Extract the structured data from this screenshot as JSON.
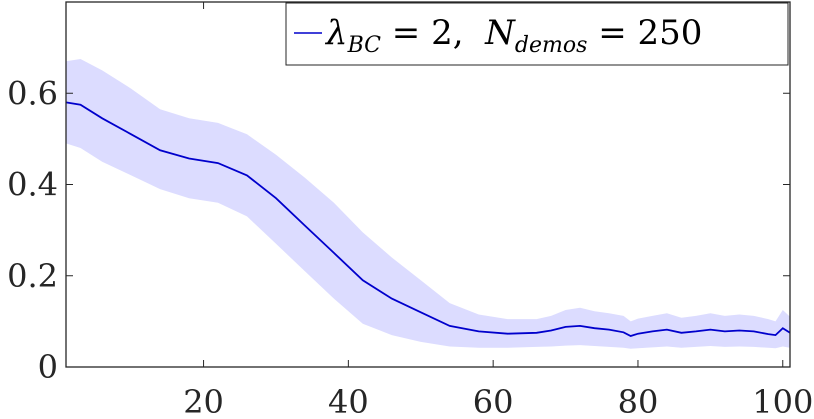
{
  "chart_data": {
    "type": "line",
    "title": "",
    "xlabel": "",
    "ylabel": "",
    "xlim": [
      1,
      101
    ],
    "ylim": [
      0,
      0.8
    ],
    "xticks": [
      20,
      40,
      60,
      80,
      100
    ],
    "xtick_labels": [
      "20",
      "40",
      "60",
      "80",
      "100"
    ],
    "yticks": [
      0,
      0.2,
      0.4,
      0.6
    ],
    "ytick_labels": [
      "0",
      "0.2",
      "0.4",
      "0.6"
    ],
    "grid": false,
    "legend_position": "top-right",
    "legend": {
      "lambda_symbol": "λ",
      "lambda_sub": "BC",
      "lambda_value": " = 2,  ",
      "n_symbol": "N",
      "n_sub": "demos",
      "n_value": " = 250"
    },
    "series": [
      {
        "name": "λBC = 2,  Ndemos = 250",
        "color": "#0000cc",
        "band_color": "#dcdcff",
        "x": [
          1,
          3,
          6,
          10,
          14,
          18,
          22,
          26,
          30,
          34,
          38,
          42,
          46,
          50,
          54,
          58,
          62,
          66,
          68,
          70,
          72,
          74,
          76,
          78,
          79,
          80,
          82,
          84,
          86,
          88,
          90,
          92,
          94,
          96,
          98,
          99,
          100,
          101
        ],
        "y": [
          0.58,
          0.575,
          0.545,
          0.51,
          0.475,
          0.457,
          0.447,
          0.42,
          0.37,
          0.31,
          0.25,
          0.19,
          0.15,
          0.12,
          0.09,
          0.078,
          0.073,
          0.075,
          0.08,
          0.088,
          0.09,
          0.085,
          0.082,
          0.076,
          0.068,
          0.073,
          0.078,
          0.082,
          0.075,
          0.078,
          0.082,
          0.078,
          0.08,
          0.078,
          0.072,
          0.07,
          0.085,
          0.075
        ],
        "lower": [
          0.49,
          0.48,
          0.45,
          0.42,
          0.39,
          0.37,
          0.36,
          0.33,
          0.27,
          0.21,
          0.15,
          0.095,
          0.07,
          0.055,
          0.045,
          0.042,
          0.042,
          0.044,
          0.045,
          0.047,
          0.048,
          0.046,
          0.044,
          0.042,
          0.04,
          0.041,
          0.043,
          0.045,
          0.042,
          0.044,
          0.046,
          0.044,
          0.045,
          0.044,
          0.042,
          0.041,
          0.045,
          0.042
        ],
        "upper": [
          0.67,
          0.675,
          0.65,
          0.61,
          0.565,
          0.545,
          0.535,
          0.51,
          0.465,
          0.415,
          0.36,
          0.295,
          0.24,
          0.19,
          0.14,
          0.115,
          0.105,
          0.105,
          0.112,
          0.125,
          0.13,
          0.122,
          0.118,
          0.112,
          0.1,
          0.106,
          0.112,
          0.118,
          0.108,
          0.112,
          0.118,
          0.112,
          0.115,
          0.112,
          0.105,
          0.1,
          0.125,
          0.11
        ]
      }
    ]
  }
}
